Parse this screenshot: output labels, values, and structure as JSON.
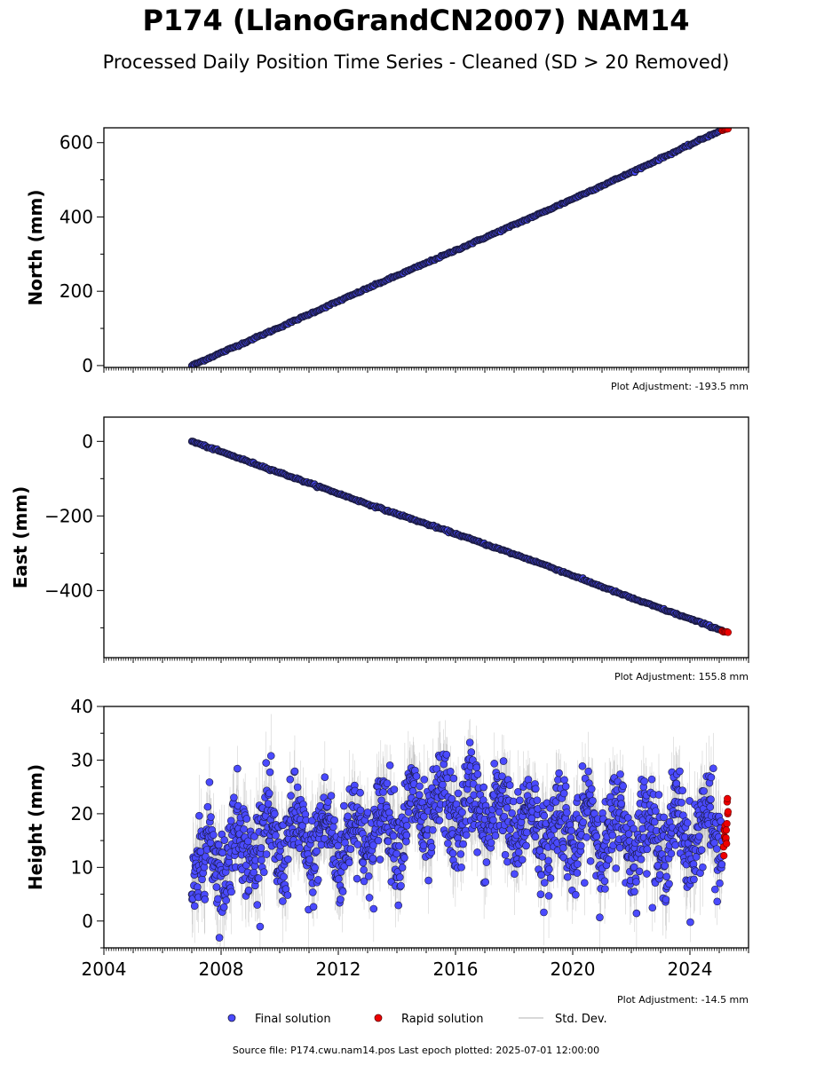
{
  "title": "P174 (LlanoGrandCN2007) NAM14",
  "subtitle": "Processed Daily Position Time Series - Cleaned (SD > 20 Removed)",
  "source_text": "Source file: P174.cwu.nam14.pos  Last epoch plotted: 2025-07-01 12:00:00",
  "colors": {
    "final": "#4a4aff",
    "final_edge": "#1a1a40",
    "rapid": "#ee0000",
    "stddev": "#9a9a9a"
  },
  "legend": {
    "final": "Final solution",
    "rapid": "Rapid solution",
    "stddev": "Std. Dev."
  },
  "chart_data": [
    {
      "type": "scatter",
      "ylabel": "North (mm)",
      "adjustment": "Plot Adjustment: -193.5 mm",
      "xlim": [
        2004,
        2026
      ],
      "ylim": [
        -5,
        640
      ],
      "yticks": [
        0,
        200,
        400,
        600
      ],
      "xtick_labels_visible": false,
      "final": {
        "x": [
          2007.0,
          2010.0,
          2013.0,
          2016.0,
          2019.0,
          2022.0,
          2025.1
        ],
        "y": [
          0,
          103,
          208,
          310,
          413,
          520,
          635
        ]
      },
      "rapid": {
        "x": [
          2025.1,
          2025.3
        ],
        "y": [
          633,
          638
        ]
      }
    },
    {
      "type": "scatter",
      "ylabel": "East (mm)",
      "adjustment": "Plot Adjustment: 155.8 mm",
      "xlim": [
        2004,
        2026
      ],
      "ylim": [
        -580,
        65
      ],
      "yticks": [
        0,
        -200,
        -400
      ],
      "ytick_labels": [
        "0",
        "−200",
        "−400"
      ],
      "xtick_labels_visible": false,
      "final": {
        "x": [
          2007.0,
          2010.0,
          2013.0,
          2016.0,
          2019.0,
          2022.0,
          2025.1
        ],
        "y": [
          0,
          -84,
          -168,
          -248,
          -330,
          -420,
          -507
        ]
      },
      "rapid": {
        "x": [
          2025.1,
          2025.3
        ],
        "y": [
          -509,
          -512
        ]
      }
    },
    {
      "type": "scatter",
      "ylabel": "Height (mm)",
      "adjustment": "Plot Adjustment: -14.5 mm",
      "xlim": [
        2004,
        2026
      ],
      "ylim": [
        -5,
        40
      ],
      "yticks": [
        0,
        10,
        20,
        30,
        40
      ],
      "xticks": [
        2004,
        2008,
        2012,
        2016,
        2020,
        2024
      ],
      "xtick_labels_visible": true,
      "final_trend": {
        "x": [
          2007.0,
          2009.0,
          2012.0,
          2015.0,
          2016.5,
          2019.0,
          2021.0,
          2023.0,
          2025.1
        ],
        "y": [
          10,
          15,
          15,
          20,
          21,
          17,
          17,
          16,
          17
        ]
      },
      "rapid": {
        "x": [
          2025.15,
          2025.2,
          2025.25,
          2025.3
        ],
        "y": [
          13,
          16,
          18,
          21
        ]
      }
    }
  ]
}
